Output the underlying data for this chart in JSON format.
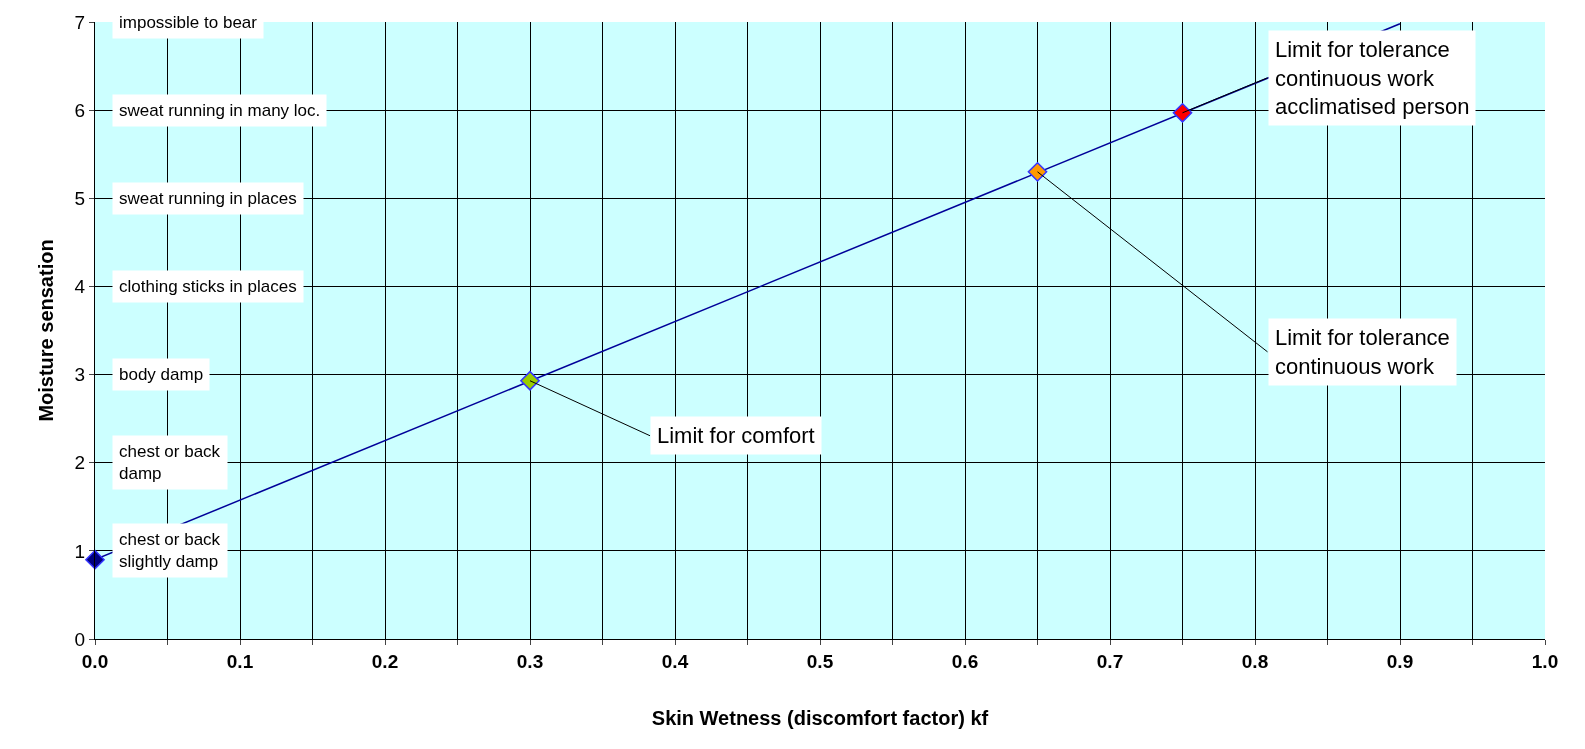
{
  "chart_data": {
    "type": "line",
    "xlabel": "Skin Wetness (discomfort factor) kf",
    "ylabel": "Moisture sensation",
    "xlim": [
      0,
      1
    ],
    "ylim": [
      0,
      7
    ],
    "xticks": [
      {
        "value": 0,
        "label": "0.0"
      },
      {
        "value": 0.05,
        "label": null
      },
      {
        "value": 0.1,
        "label": "0.1"
      },
      {
        "value": 0.15,
        "label": null
      },
      {
        "value": 0.2,
        "label": "0.2"
      },
      {
        "value": 0.25,
        "label": null
      },
      {
        "value": 0.3,
        "label": "0.3"
      },
      {
        "value": 0.35,
        "label": null
      },
      {
        "value": 0.4,
        "label": "0.4"
      },
      {
        "value": 0.45,
        "label": null
      },
      {
        "value": 0.5,
        "label": "0.5"
      },
      {
        "value": 0.55,
        "label": null
      },
      {
        "value": 0.6,
        "label": "0.6"
      },
      {
        "value": 0.65,
        "label": null
      },
      {
        "value": 0.7,
        "label": "0.7"
      },
      {
        "value": 0.75,
        "label": null
      },
      {
        "value": 0.8,
        "label": "0.8"
      },
      {
        "value": 0.85,
        "label": null
      },
      {
        "value": 0.9,
        "label": "0.9"
      },
      {
        "value": 0.95,
        "label": null
      },
      {
        "value": 1,
        "label": "1.0"
      }
    ],
    "yticks": [
      0,
      1,
      2,
      3,
      4,
      5,
      6,
      7
    ],
    "grid": true,
    "series": [
      {
        "type": "scatter",
        "marker": "diamond",
        "x": [
          0,
          0.3,
          0.65,
          0.75
        ],
        "values": [
          0.9,
          2.93,
          5.3,
          5.97
        ],
        "colors": [
          "#000080",
          "#99cc00",
          "#ff9900",
          "#ff0000"
        ]
      },
      {
        "x": [
          0,
          0.9
        ],
        "values": [
          0.9,
          6.98
        ],
        "color": "#000099"
      }
    ],
    "annotations": [
      "impossible to bear",
      "sweat running in many loc.",
      "sweat running in places",
      "clothing sticks in places",
      "body damp",
      "chest or back\ndamp",
      "chest or back\nslightly damp",
      {
        "text": "Limit for comfort",
        "x": 0.3,
        "y": 2.93
      },
      {
        "text": "Limit for tolerance\ncontinuous work",
        "x": 0.65,
        "y": 5.3
      },
      {
        "text": "Limit for tolerance\ncontinuous work\nacclimatised person",
        "x": 0.75,
        "y": 5.97
      }
    ]
  }
}
